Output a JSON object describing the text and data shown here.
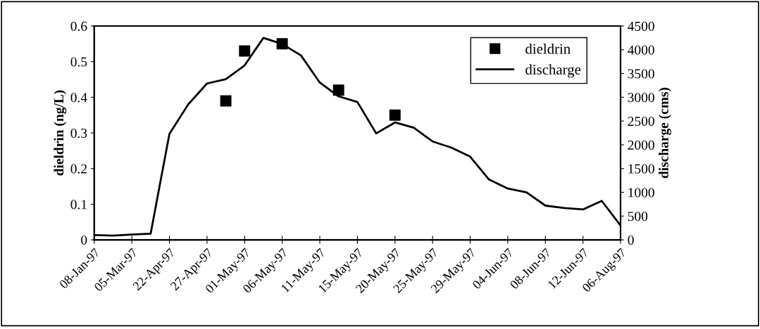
{
  "chart_data": {
    "type": "line",
    "categories": [
      "08-Jan-97",
      null,
      "05-Mar-97",
      null,
      "22-Apr-97",
      null,
      "27-Apr-97",
      null,
      "01-May-97",
      null,
      "06-May-97",
      null,
      "11-May-97",
      null,
      "15-May-97",
      null,
      "20-May-97",
      null,
      "25-May-97",
      null,
      "29-May-97",
      null,
      "04-Jun-97",
      null,
      "08-Jun-97",
      null,
      "12-Jun-97",
      null,
      "06-Aug-97"
    ],
    "series": [
      {
        "name": "dieldrin",
        "type": "scatter",
        "color": "#000000",
        "marker": "square",
        "values": [
          null,
          null,
          null,
          null,
          null,
          null,
          null,
          0.39,
          0.53,
          null,
          0.55,
          null,
          null,
          0.42,
          null,
          null,
          0.35,
          null,
          null,
          null,
          null,
          null,
          null,
          null,
          null,
          null,
          null,
          null,
          null
        ]
      },
      {
        "name": "discharge",
        "type": "line",
        "axis": "y2",
        "color": "#000000",
        "values": [
          100,
          90,
          110,
          130,
          2230,
          2850,
          3290,
          3380,
          3670,
          4250,
          4120,
          3880,
          3310,
          3020,
          2900,
          2240,
          2470,
          2360,
          2070,
          1940,
          1750,
          1270,
          1080,
          1000,
          720,
          670,
          640,
          820,
          300
        ]
      }
    ],
    "ylabel": "dieldrin (ng/L)",
    "y2label": "discharge (cms)",
    "ylim": [
      0,
      0.6
    ],
    "yticks": [
      {
        "value": 0,
        "label": "0"
      },
      0.1,
      0.2,
      0.3,
      0.4,
      0.5,
      0.6
    ],
    "y2lim": [
      0,
      4500
    ],
    "y2ticks": [
      0,
      500,
      1000,
      1500,
      2000,
      2500,
      3000,
      3500,
      4000,
      4500
    ],
    "legend": "top right",
    "grid": false
  }
}
